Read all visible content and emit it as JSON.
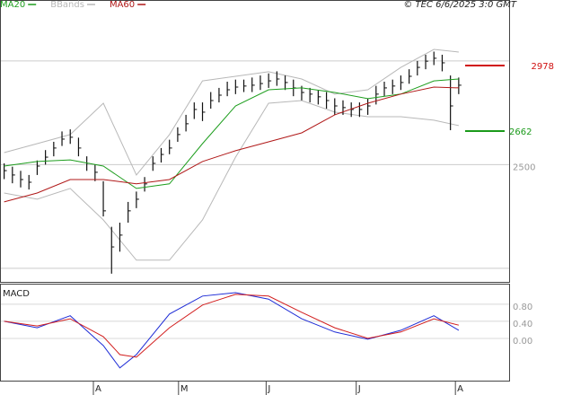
{
  "chart_data": [
    {
      "type": "ohlc",
      "source": "© TEC 6/6/2025 3:0 GMT",
      "xlim": [
        -0.5,
        61.1
      ],
      "ylim": [
        1930,
        3294
      ],
      "yticks": [
        2500
      ],
      "gridlines": [
        2000,
        3000
      ],
      "high": [
        2506,
        2490,
        2470,
        2450,
        2520,
        2570,
        2610,
        2660,
        2670,
        2630,
        2540,
        2500,
        2420,
        2200,
        2220,
        2320,
        2370,
        2440,
        2540,
        2580,
        2620,
        2680,
        2740,
        2800,
        2800,
        2850,
        2870,
        2900,
        2910,
        2910,
        2920,
        2930,
        2940,
        2950,
        2930,
        2910,
        2880,
        2870,
        2860,
        2850,
        2820,
        2810,
        2800,
        2800,
        2820,
        2880,
        2900,
        2910,
        2930,
        2960,
        3000,
        3030,
        3045,
        3030,
        2930,
        2920
      ],
      "low": [
        2430,
        2410,
        2390,
        2380,
        2450,
        2500,
        2540,
        2590,
        2600,
        2540,
        2470,
        2420,
        2250,
        1974,
        2080,
        2220,
        2290,
        2370,
        2470,
        2510,
        2550,
        2610,
        2660,
        2720,
        2710,
        2770,
        2800,
        2830,
        2840,
        2850,
        2850,
        2860,
        2870,
        2880,
        2860,
        2830,
        2810,
        2800,
        2790,
        2770,
        2740,
        2740,
        2730,
        2730,
        2740,
        2790,
        2830,
        2840,
        2860,
        2890,
        2930,
        2960,
        2980,
        2950,
        2666,
        2840
      ],
      "close": [
        2471,
        2450,
        2428,
        2415,
        2493,
        2536,
        2580,
        2623,
        2632,
        2580,
        2506,
        2463,
        2277,
        2103,
        2160,
        2277,
        2333,
        2407,
        2506,
        2549,
        2580,
        2645,
        2697,
        2766,
        2753,
        2809,
        2835,
        2861,
        2874,
        2879,
        2883,
        2891,
        2904,
        2913,
        2896,
        2870,
        2848,
        2840,
        2827,
        2809,
        2783,
        2775,
        2766,
        2766,
        2783,
        2840,
        2870,
        2879,
        2896,
        2926,
        2969,
        2999,
        3013,
        2991,
        2783,
        2883
      ],
      "series": [
        {
          "name": "MA20",
          "color": "#1e9e1e",
          "x": [
            0,
            4,
            8,
            12,
            16,
            20,
            24,
            28,
            32,
            36,
            40,
            44,
            48,
            52,
            55
          ],
          "values": [
            2493,
            2515,
            2523,
            2493,
            2385,
            2407,
            2601,
            2783,
            2861,
            2870,
            2848,
            2818,
            2840,
            2904,
            2913
          ]
        },
        {
          "name": "BBands",
          "color": "#b8b8b8",
          "x": [
            0,
            4,
            8,
            12,
            16,
            20,
            24,
            28,
            32,
            36,
            40,
            44,
            48,
            52,
            55
          ],
          "upper": [
            2558,
            2601,
            2645,
            2796,
            2450,
            2645,
            2904,
            2926,
            2948,
            2913,
            2840,
            2861,
            2969,
            3056,
            3043
          ],
          "lower": [
            2363,
            2333,
            2385,
            2233,
            2039,
            2039,
            2233,
            2536,
            2796,
            2809,
            2753,
            2731,
            2731,
            2714,
            2688
          ]
        },
        {
          "name": "MA60",
          "color": "#b01818",
          "x": [
            0,
            4,
            8,
            12,
            16,
            20,
            24,
            28,
            32,
            36,
            40,
            44,
            48,
            52,
            55
          ],
          "values": [
            2320,
            2363,
            2428,
            2428,
            2407,
            2428,
            2515,
            2567,
            2610,
            2653,
            2740,
            2796,
            2840,
            2874,
            2870
          ]
        }
      ],
      "levels": [
        {
          "value": 2978,
          "color": "#d01010"
        },
        {
          "value": 2662,
          "color": "#1a9a1a"
        }
      ]
    },
    {
      "type": "line",
      "title": "MACD",
      "xlim": [
        -0.5,
        61.1
      ],
      "ylim": [
        -1.01,
        1.26
      ],
      "yticks": [
        {
          "value": 0,
          "label": "0.00"
        },
        {
          "value": 0.4,
          "label": "0.40"
        },
        {
          "value": 0.8,
          "label": "0.80"
        }
      ],
      "xticks": [
        {
          "value": 10.8,
          "label": "A"
        },
        {
          "value": 21.1,
          "label": "M"
        },
        {
          "value": 31.7,
          "label": "J"
        },
        {
          "value": 42.6,
          "label": "J"
        },
        {
          "value": 54.6,
          "label": "A"
        }
      ],
      "x": [
        0,
        4,
        8,
        12,
        14,
        16,
        20,
        24,
        28,
        32,
        36,
        40,
        44,
        48,
        52,
        55
      ],
      "series": [
        {
          "color": "#1d2bd6",
          "values": [
            0.4,
            0.25,
            0.53,
            -0.17,
            -0.69,
            -0.38,
            0.57,
            0.99,
            1.07,
            0.92,
            0.46,
            0.15,
            -0.02,
            0.19,
            0.53,
            0.19
          ]
        },
        {
          "color": "#d21e1e",
          "values": [
            0.4,
            0.29,
            0.46,
            0.04,
            -0.38,
            -0.44,
            0.25,
            0.78,
            1.03,
            0.99,
            0.61,
            0.25,
            0.0,
            0.15,
            0.46,
            0.31
          ]
        }
      ]
    }
  ]
}
